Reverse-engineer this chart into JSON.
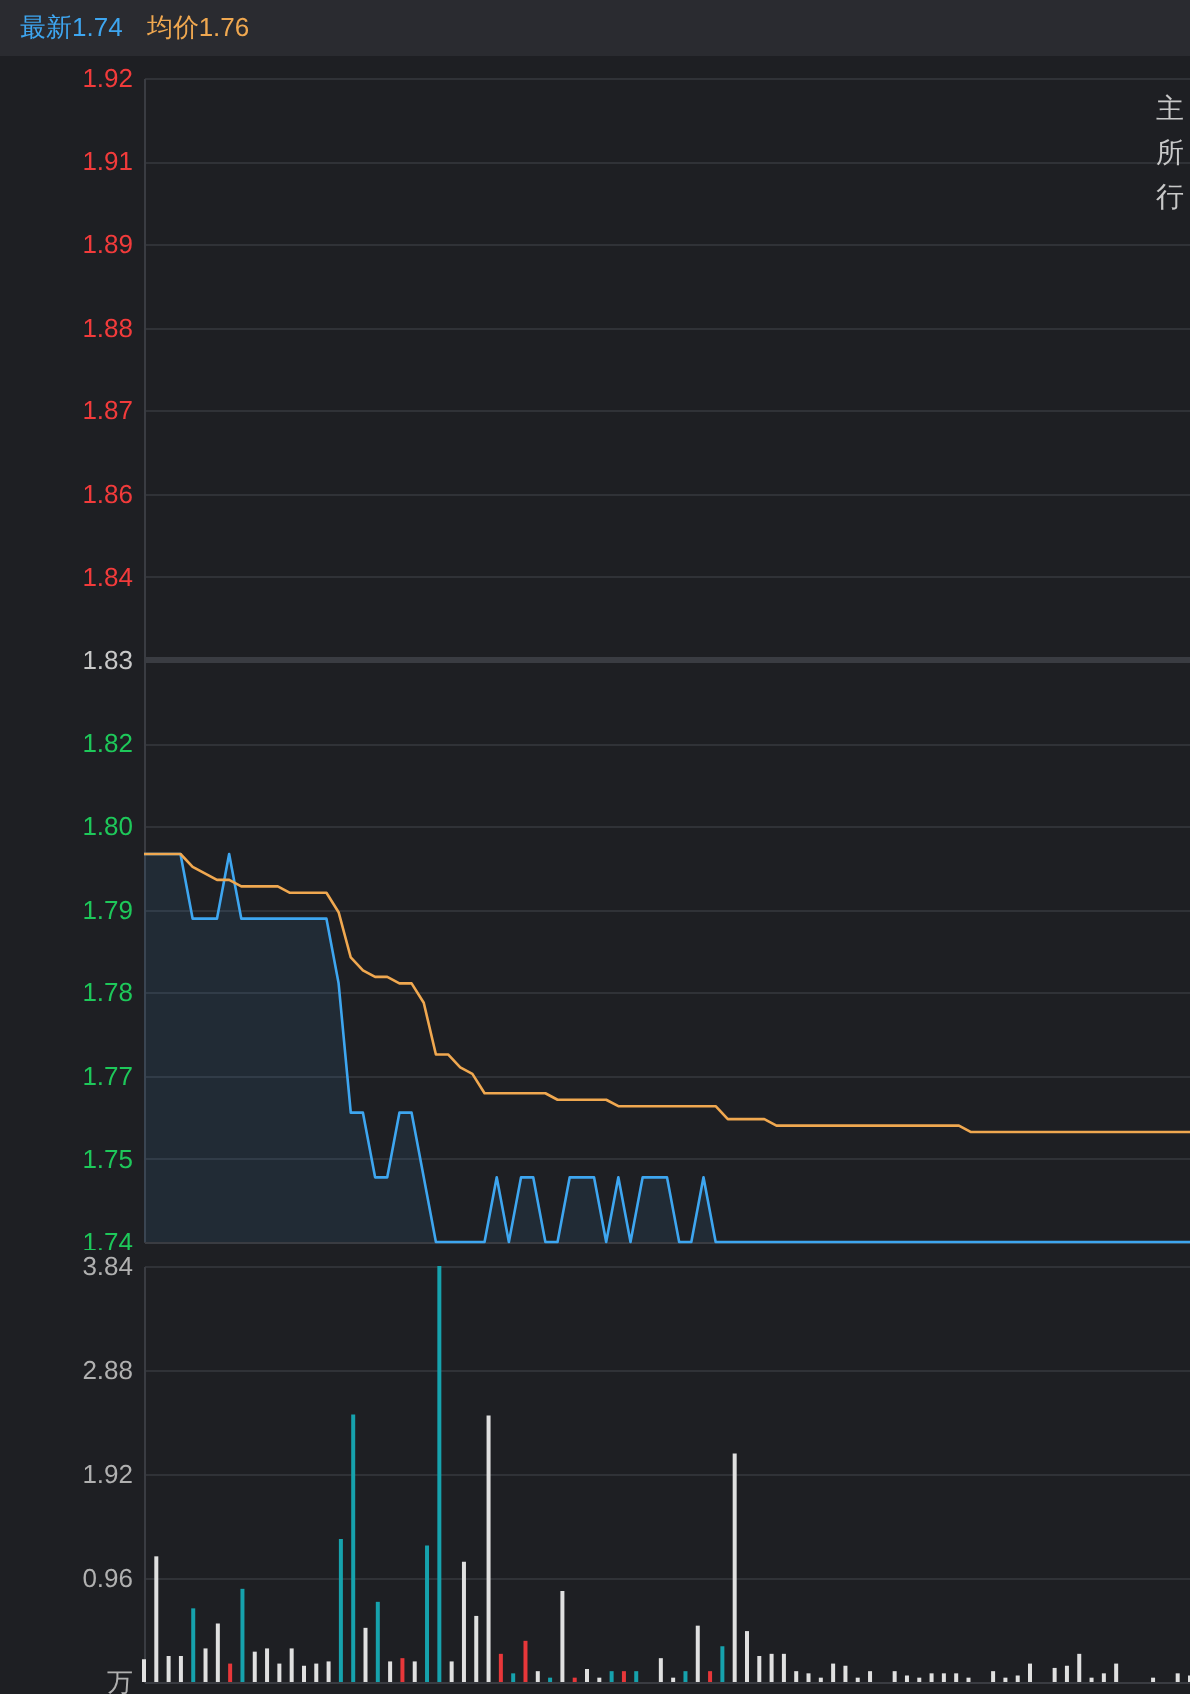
{
  "chart_data": [
    {
      "type": "line",
      "grid": "y",
      "tick_labels": "y",
      "categories": [
        null,
        null,
        null,
        null,
        null,
        null,
        null,
        null,
        null,
        null,
        null,
        null,
        null,
        null,
        null,
        null,
        null,
        null,
        null,
        null,
        null,
        null,
        null,
        null,
        null,
        null,
        null,
        null,
        null,
        null,
        null,
        null,
        null,
        null,
        null,
        null,
        null,
        null,
        null,
        null,
        null,
        null,
        null,
        null,
        null,
        null,
        null,
        null,
        null,
        null,
        null,
        null,
        null,
        null,
        null,
        null,
        null,
        null,
        null,
        null,
        null,
        null,
        null,
        null,
        null,
        null,
        null,
        null,
        null,
        null,
        null,
        null,
        null,
        null,
        null,
        null,
        null,
        null,
        null,
        null,
        null,
        null,
        null,
        null,
        null,
        null,
        null
      ],
      "ylim": [
        1.74,
        1.92
      ],
      "yticks": [
        1.92,
        {
          "value": 1.9071,
          "label": "1.91"
        },
        {
          "value": 1.8943,
          "label": "1.89"
        },
        {
          "value": 1.8814,
          "label": "1.88"
        },
        {
          "value": 1.8686,
          "label": "1.87"
        },
        {
          "value": 1.8557,
          "label": "1.86"
        },
        {
          "value": 1.8429,
          "label": "1.84"
        },
        1.83,
        {
          "value": 1.8171,
          "label": "1.82"
        },
        {
          "value": 1.8043,
          "label": "1.80"
        },
        {
          "value": 1.7914,
          "label": "1.79"
        },
        {
          "value": 1.7786,
          "label": "1.78"
        },
        {
          "value": 1.7657,
          "label": "1.77"
        },
        {
          "value": 1.7529,
          "label": "1.75"
        },
        1.74
      ],
      "ref_lines": [
        {
          "axis": "y",
          "value": 1.83,
          "color": "#3a3c42"
        }
      ],
      "annotations": [
        "主",
        "所",
        "行"
      ],
      "series": [
        {
          "name": "最新1.74",
          "type": "area",
          "color": "#3ea6f0",
          "values": [
            1.8,
            1.8,
            1.8,
            1.8,
            1.79,
            1.79,
            1.79,
            1.8,
            1.79,
            1.79,
            1.79,
            1.79,
            1.79,
            1.79,
            1.79,
            1.79,
            1.78,
            1.76,
            1.76,
            1.75,
            1.75,
            1.76,
            1.76,
            1.75,
            1.74,
            1.74,
            1.74,
            1.74,
            1.74,
            1.75,
            1.74,
            1.75,
            1.75,
            1.74,
            1.74,
            1.75,
            1.75,
            1.75,
            1.74,
            1.75,
            1.74,
            1.75,
            1.75,
            1.75,
            1.74,
            1.74,
            1.75,
            1.74,
            1.74,
            1.74,
            1.74,
            1.74,
            1.74,
            1.74,
            1.74,
            1.74,
            1.74,
            1.74,
            1.74,
            1.74,
            1.74,
            1.74,
            1.74,
            1.74,
            1.74,
            1.74,
            1.74,
            1.74,
            1.74,
            1.74,
            1.74,
            1.74,
            1.74,
            1.74,
            1.74,
            1.74,
            1.74,
            1.74,
            1.74,
            1.74,
            1.74,
            1.74,
            1.74,
            1.74,
            1.74,
            1.74,
            1.74
          ]
        },
        {
          "name": "均价1.76",
          "type": "line",
          "color": "#f0a850",
          "values": [
            1.8,
            1.8,
            1.8,
            1.8,
            1.798,
            1.797,
            1.796,
            1.796,
            1.795,
            1.795,
            1.795,
            1.795,
            1.794,
            1.794,
            1.794,
            1.794,
            1.791,
            1.784,
            1.782,
            1.781,
            1.781,
            1.78,
            1.78,
            1.777,
            1.769,
            1.769,
            1.767,
            1.766,
            1.763,
            1.763,
            1.763,
            1.763,
            1.763,
            1.763,
            1.762,
            1.762,
            1.762,
            1.762,
            1.762,
            1.761,
            1.761,
            1.761,
            1.761,
            1.761,
            1.761,
            1.761,
            1.761,
            1.761,
            1.759,
            1.759,
            1.759,
            1.759,
            1.758,
            1.758,
            1.758,
            1.758,
            1.758,
            1.758,
            1.758,
            1.758,
            1.758,
            1.758,
            1.758,
            1.758,
            1.758,
            1.758,
            1.758,
            1.758,
            1.757,
            1.757,
            1.757,
            1.757,
            1.757,
            1.757,
            1.757,
            1.757,
            1.757,
            1.757,
            1.757,
            1.757,
            1.757,
            1.757,
            1.757,
            1.757,
            1.757,
            1.757,
            1.757
          ]
        }
      ]
    },
    {
      "type": "bar",
      "grid": "y",
      "tick_labels": "y",
      "categories": [
        null,
        null,
        null,
        null,
        null,
        null,
        null,
        null,
        null,
        null,
        null,
        null,
        null,
        null,
        null,
        null,
        null,
        null,
        null,
        null,
        null,
        null,
        null,
        null,
        null,
        null,
        null,
        null,
        null,
        null,
        null,
        null,
        null,
        null,
        null,
        null,
        null,
        null,
        null,
        null,
        null,
        null,
        null,
        null,
        null,
        null,
        null,
        null,
        null,
        null,
        null,
        null,
        null,
        null,
        null,
        null,
        null,
        null,
        null,
        null,
        null,
        null,
        null,
        null,
        null,
        null,
        null,
        null,
        null,
        null,
        null,
        null,
        null,
        null,
        null,
        null,
        null,
        null,
        null,
        null,
        null,
        null,
        null,
        null,
        null,
        null
      ],
      "ylim": [
        0,
        3.84
      ],
      "yticks": [
        {
          "value": 0,
          "label": "万"
        },
        0.96,
        1.92,
        2.88,
        3.84
      ],
      "values": [
        0.21,
        1.16,
        0.24,
        0.24,
        0.68,
        0.31,
        0.54,
        0.17,
        0.86,
        0.28,
        0.31,
        0.17,
        0.31,
        0.15,
        0.17,
        0.19,
        1.32,
        2.47,
        0.5,
        0.74,
        0.19,
        0.22,
        0.19,
        1.26,
        3.84,
        0.19,
        1.11,
        0.61,
        2.46,
        0.26,
        0.08,
        0.38,
        0.1,
        0.04,
        0.84,
        0.04,
        0.12,
        0.04,
        0.1,
        0.1,
        0.1,
        0,
        0.22,
        0.04,
        0.1,
        0.52,
        0.1,
        0.33,
        2.11,
        0.47,
        0.24,
        0.26,
        0.26,
        0.1,
        0.08,
        0.04,
        0.17,
        0.15,
        0.04,
        0.1,
        0,
        0.1,
        0.06,
        0.04,
        0.08,
        0.08,
        0.08,
        0.04,
        0,
        0.1,
        0.04,
        0.06,
        0.17,
        0,
        0.13,
        0.15,
        0.26,
        0.04,
        0.08,
        0.17,
        0,
        0,
        0.04,
        0,
        0.08,
        0.06
      ],
      "colors": [
        "#e0e0e0",
        "#e0e0e0",
        "#e0e0e0",
        "#e0e0e0",
        "#16a2ad",
        "#e0e0e0",
        "#e0e0e0",
        "#e8373a",
        "#16a2ad",
        "#e0e0e0",
        "#e0e0e0",
        "#e0e0e0",
        "#e0e0e0",
        "#e0e0e0",
        "#e0e0e0",
        "#e0e0e0",
        "#16a2ad",
        "#16a2ad",
        "#e0e0e0",
        "#16a2ad",
        "#e0e0e0",
        "#e8373a",
        "#e0e0e0",
        "#16a2ad",
        "#16a2ad",
        "#e0e0e0",
        "#e0e0e0",
        "#e0e0e0",
        "#e0e0e0",
        "#e8373a",
        "#16a2ad",
        "#e8373a",
        "#e0e0e0",
        "#16a2ad",
        "#e0e0e0",
        "#e8373a",
        "#e0e0e0",
        "#e0e0e0",
        "#16a2ad",
        "#e8373a",
        "#16a2ad",
        "#e0e0e0",
        "#e0e0e0",
        "#e0e0e0",
        "#16a2ad",
        "#e0e0e0",
        "#e8373a",
        "#16a2ad",
        "#e0e0e0",
        "#e0e0e0",
        "#e0e0e0",
        "#e0e0e0",
        "#e0e0e0",
        "#e0e0e0",
        "#e0e0e0",
        "#e0e0e0",
        "#e0e0e0",
        "#e0e0e0",
        "#e0e0e0",
        "#e0e0e0",
        "#e0e0e0",
        "#e0e0e0",
        "#e0e0e0",
        "#e0e0e0",
        "#e0e0e0",
        "#e0e0e0",
        "#e0e0e0",
        "#e0e0e0",
        "#e0e0e0",
        "#e0e0e0",
        "#e0e0e0",
        "#e0e0e0",
        "#e0e0e0",
        "#e0e0e0",
        "#e0e0e0",
        "#e0e0e0",
        "#e0e0e0",
        "#e0e0e0",
        "#e0e0e0",
        "#e0e0e0",
        "#e0e0e0",
        "#e0e0e0",
        "#e0e0e0",
        "#e0e0e0",
        "#e0e0e0",
        "#e0e0e0"
      ]
    }
  ]
}
